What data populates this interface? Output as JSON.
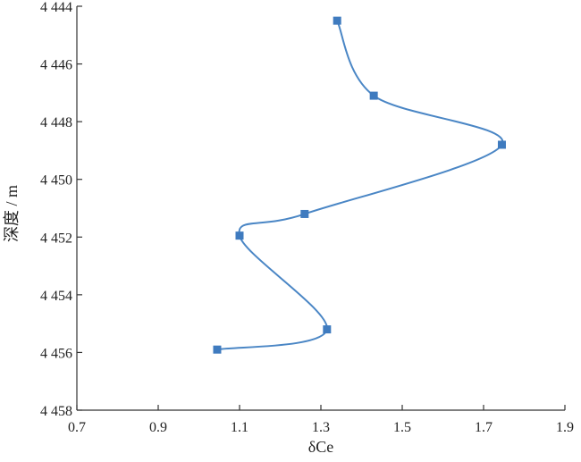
{
  "chart_data": {
    "type": "line",
    "title": "",
    "xlabel": "δCe",
    "ylabel": "深度 / m",
    "xlim": [
      0.7,
      1.9
    ],
    "ylim": [
      4444,
      4458
    ],
    "y_inverted": true,
    "grid": false,
    "x_ticks": [
      0.7,
      0.9,
      1.1,
      1.3,
      1.5,
      1.7,
      1.9
    ],
    "x_tick_labels": [
      "0.7",
      "0.9",
      "1.1",
      "1.3",
      "1.5",
      "1.7",
      "1.9"
    ],
    "y_ticks": [
      4444,
      4446,
      4448,
      4450,
      4452,
      4454,
      4456,
      4458
    ],
    "y_tick_labels": [
      "4 444",
      "4 446",
      "4 448",
      "4 450",
      "4 452",
      "4 454",
      "4 456",
      "4 458"
    ],
    "series": [
      {
        "x": [
          1.34,
          1.43,
          1.745,
          1.26,
          1.1,
          1.315,
          1.045
        ],
        "y": [
          4444.5,
          4447.1,
          4448.8,
          4451.2,
          4451.95,
          4455.2,
          4455.9
        ]
      }
    ],
    "colors": {
      "line": "#4a86c5",
      "marker": "#3f7bbf",
      "axis": "#333333"
    }
  }
}
